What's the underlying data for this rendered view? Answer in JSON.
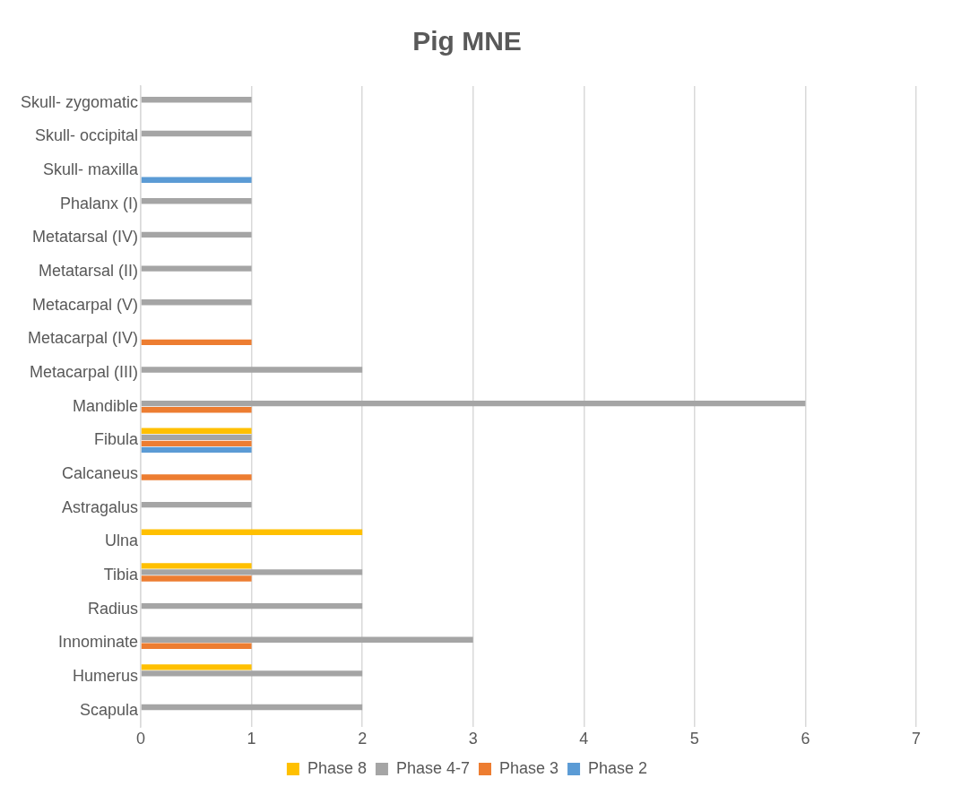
{
  "chart_data": {
    "type": "bar",
    "orientation": "horizontal",
    "title": "Pig MNE",
    "categories": [
      "Skull- zygomatic",
      "Skull- occipital",
      "Skull- maxilla",
      "Phalanx (I)",
      "Metatarsal (IV)",
      "Metatarsal (II)",
      "Metacarpal (V)",
      "Metacarpal (IV)",
      "Metacarpal (III)",
      "Mandible",
      "Fibula",
      "Calcaneus",
      "Astragalus",
      "Ulna",
      "Tibia",
      "Radius",
      "Innominate",
      "Humerus",
      "Scapula"
    ],
    "series": [
      {
        "name": "Phase 8",
        "color": "#ffc000",
        "values": [
          null,
          null,
          null,
          null,
          null,
          null,
          null,
          null,
          null,
          null,
          1,
          null,
          null,
          2,
          1,
          null,
          null,
          1,
          null
        ]
      },
      {
        "name": "Phase 4-7",
        "color": "#a5a5a5",
        "values": [
          1,
          1,
          null,
          1,
          1,
          1,
          1,
          null,
          2,
          6,
          1,
          null,
          1,
          null,
          2,
          2,
          3,
          2,
          2
        ]
      },
      {
        "name": "Phase 3",
        "color": "#ed7d31",
        "values": [
          null,
          null,
          null,
          null,
          null,
          null,
          null,
          1,
          null,
          1,
          1,
          1,
          null,
          null,
          1,
          null,
          1,
          null,
          null
        ]
      },
      {
        "name": "Phase 2",
        "color": "#5b9bd5",
        "values": [
          null,
          null,
          1,
          null,
          null,
          null,
          null,
          null,
          null,
          null,
          1,
          null,
          null,
          null,
          null,
          null,
          null,
          null,
          null
        ]
      }
    ],
    "xlim": [
      0,
      7
    ],
    "xticks": [
      0,
      1,
      2,
      3,
      4,
      5,
      6,
      7
    ],
    "grid": "x",
    "legend": "bottom"
  }
}
